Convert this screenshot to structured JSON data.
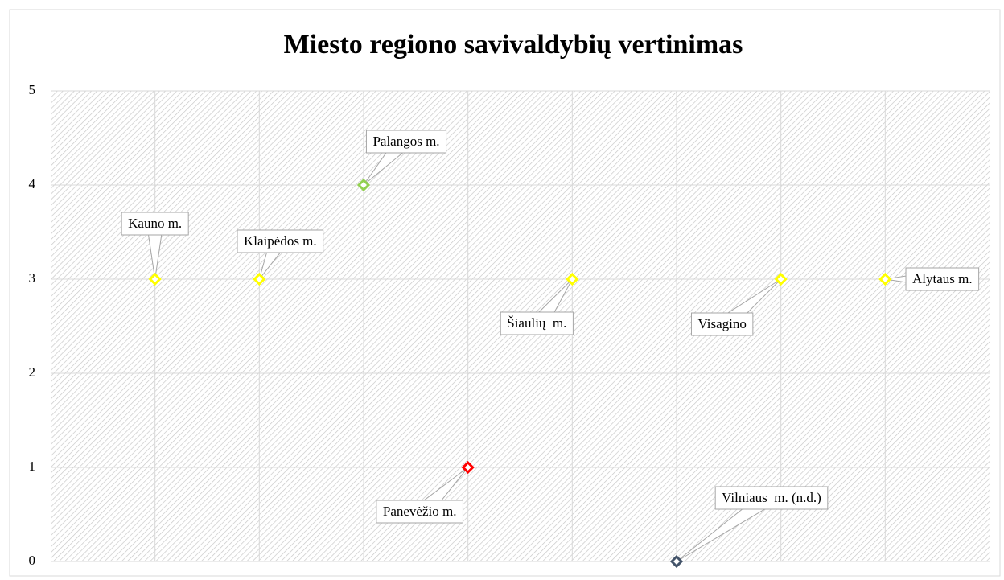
{
  "chart_data": {
    "type": "scatter",
    "title": "Miesto regiono savivaldybių vertinimas",
    "x": [
      1,
      2,
      3,
      4,
      5,
      6,
      7,
      8
    ],
    "values": [
      3,
      3,
      4,
      1,
      3,
      0,
      3,
      3
    ],
    "point_labels": [
      "Kauno m.",
      "Klaipėdos m.",
      "Palangos m.",
      "Panevėžio m.",
      "Šiaulių  m.",
      "Vilniaus  m. (n.d.)",
      "Visagino",
      "Alytaus m."
    ],
    "colors": [
      "#ffff00",
      "#ffff00",
      "#92d050",
      "#ff0000",
      "#ffff00",
      "#44546a",
      "#ffff00",
      "#ffff00"
    ],
    "xlim": [
      0,
      9
    ],
    "xticks": [
      1,
      2,
      3,
      4,
      5,
      6,
      7,
      8
    ],
    "ylim": [
      0,
      5
    ],
    "yticks": [
      0,
      1,
      2,
      3,
      4,
      5
    ],
    "grid": true
  }
}
